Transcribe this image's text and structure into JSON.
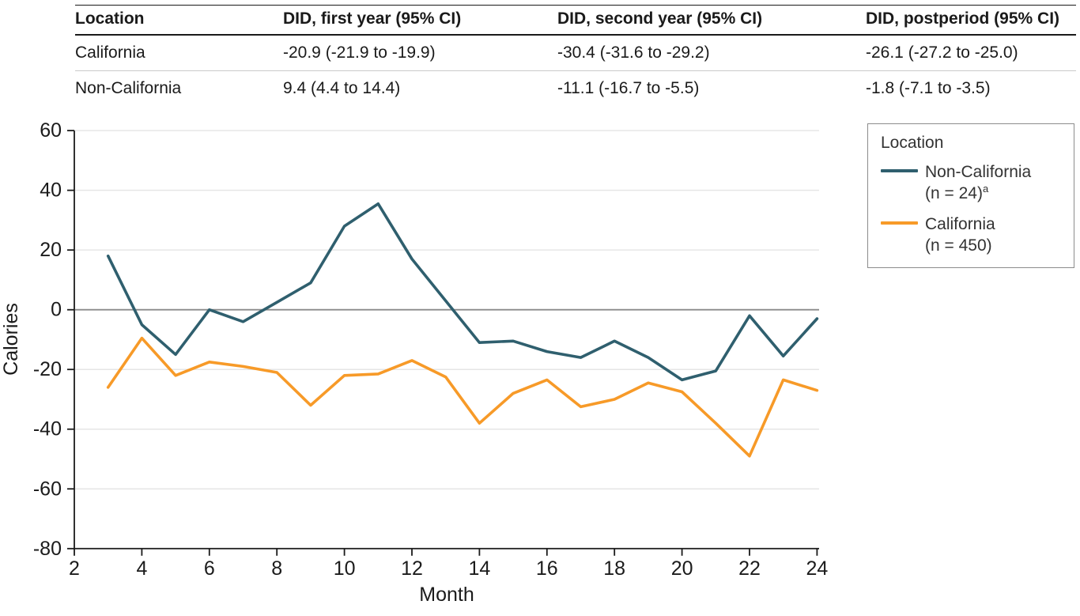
{
  "table": {
    "columns": [
      "Location",
      "DID, first year (95% CI)",
      "DID, second year (95% CI)",
      "DID, postperiod (95% CI)"
    ],
    "rows": [
      {
        "location": "California",
        "first_year": "-20.9 (-21.9 to -19.9)",
        "second_year": "-30.4 (-31.6 to -29.2)",
        "postperiod": "-26.1 (-27.2 to -25.0)"
      },
      {
        "location": "Non-California",
        "first_year": "9.4 (4.4 to 14.4)",
        "second_year": "-11.1 (-16.7 to -5.5)",
        "postperiod": "-1.8 (-7.1 to -3.5)"
      }
    ]
  },
  "legend": {
    "title": "Location",
    "entries": [
      {
        "name": "Non-California",
        "count": "(n = 24)",
        "superscript": "a"
      },
      {
        "name": "California",
        "count": "(n = 450)",
        "superscript": ""
      }
    ]
  },
  "chart_data": {
    "type": "line",
    "title": "",
    "xlabel": "Month",
    "ylabel": "Calories",
    "xlim": [
      2,
      24
    ],
    "ylim": [
      -80,
      60
    ],
    "xticks": [
      2,
      4,
      6,
      8,
      10,
      12,
      14,
      16,
      18,
      20,
      22,
      24
    ],
    "yticks": [
      60,
      40,
      20,
      0,
      -20,
      -40,
      -60,
      -80
    ],
    "grid": "horizontal-only",
    "legend_position": "right-box",
    "x": [
      3,
      4,
      5,
      6,
      7,
      8,
      9,
      10,
      11,
      12,
      13,
      14,
      15,
      16,
      17,
      18,
      19,
      20,
      21,
      22,
      23,
      24
    ],
    "series": [
      {
        "name": "Non-California (n = 24)",
        "color": "#2F5F6E",
        "values": [
          18,
          -5,
          -15,
          0,
          -4,
          2.5,
          9,
          28,
          35.5,
          17,
          3,
          -11,
          -10.5,
          -14,
          -16,
          -10.5,
          -16,
          -23.5,
          -20.5,
          -2,
          -15.5,
          -3
        ]
      },
      {
        "name": "California (n = 450)",
        "color": "#F79A28",
        "values": [
          -26,
          -9.5,
          -22,
          -17.5,
          -19,
          -21,
          -32,
          -22,
          -21.5,
          -17,
          -22.5,
          -38,
          -28,
          -23.5,
          -32.5,
          -30,
          -24.5,
          -27.5,
          -38,
          -49,
          -23.5,
          -27
        ]
      }
    ]
  },
  "colors": {
    "axis": "#1a1a1a",
    "gridline": "#e6e6e6",
    "zero_line": "#8a8a8a",
    "tick_text": "#1b1b1b"
  }
}
